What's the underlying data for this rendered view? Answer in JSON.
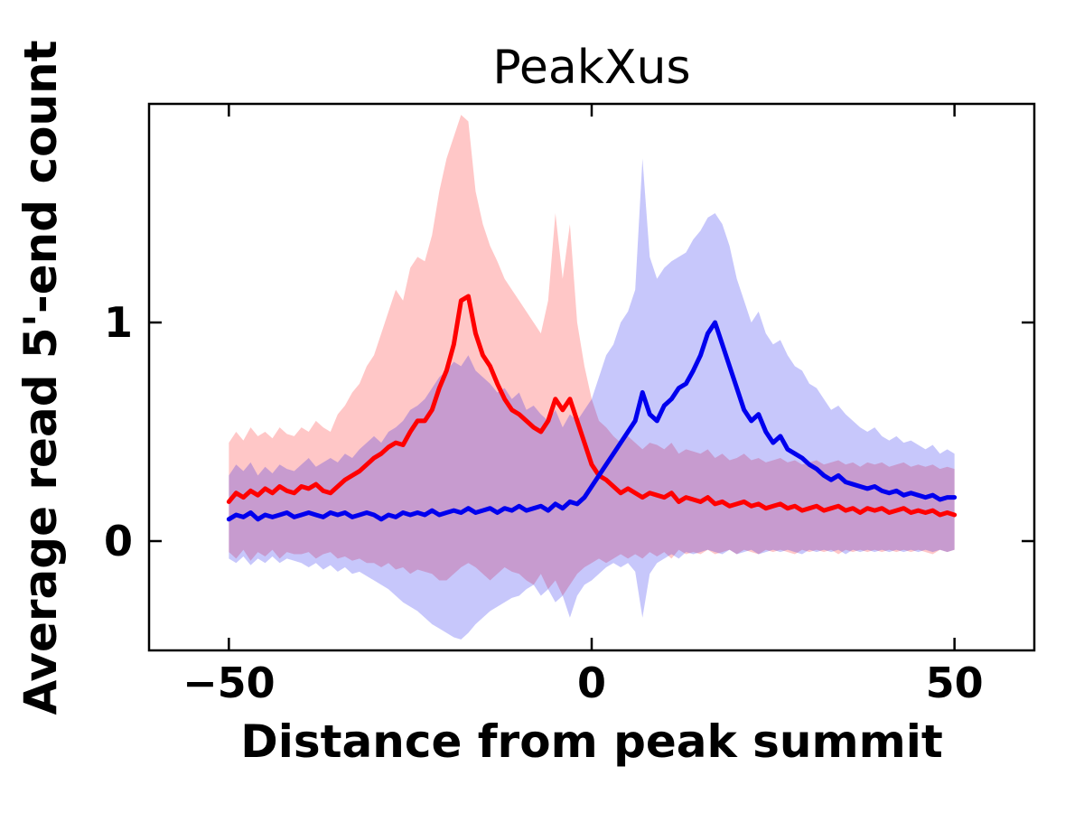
{
  "chart_data": {
    "type": "line",
    "title": "PeakXus",
    "xlabel": "Distance from peak summit",
    "ylabel": "Average read 5'-end count",
    "xlim": [
      -61,
      61
    ],
    "ylim": [
      -0.5,
      2.0
    ],
    "grid": false,
    "legend": false,
    "band_opacity": 0.22,
    "border_color": "#000000",
    "xticks": {
      "values": [
        -50,
        0,
        50
      ],
      "labels": [
        "−50",
        "0",
        "50"
      ]
    },
    "yticks": {
      "values": [
        0,
        1
      ],
      "labels": [
        "0",
        "1"
      ]
    },
    "x": [
      -50,
      -49,
      -48,
      -47,
      -46,
      -45,
      -44,
      -43,
      -42,
      -41,
      -40,
      -39,
      -38,
      -37,
      -36,
      -35,
      -34,
      -33,
      -32,
      -31,
      -30,
      -29,
      -28,
      -27,
      -26,
      -25,
      -24,
      -23,
      -22,
      -21,
      -20,
      -19,
      -18,
      -17,
      -16,
      -15,
      -14,
      -13,
      -12,
      -11,
      -10,
      -9,
      -8,
      -7,
      -6,
      -5,
      -4,
      -3,
      -2,
      -1,
      0,
      1,
      2,
      3,
      4,
      5,
      6,
      7,
      8,
      9,
      10,
      11,
      12,
      13,
      14,
      15,
      16,
      17,
      18,
      19,
      20,
      21,
      22,
      23,
      24,
      25,
      26,
      27,
      28,
      29,
      30,
      31,
      32,
      33,
      34,
      35,
      36,
      37,
      38,
      39,
      40,
      41,
      42,
      43,
      44,
      45,
      46,
      47,
      48,
      49,
      50
    ],
    "series": [
      {
        "name": "red_series",
        "color": "#ff0000",
        "values": [
          0.18,
          0.22,
          0.2,
          0.23,
          0.21,
          0.24,
          0.22,
          0.25,
          0.23,
          0.22,
          0.25,
          0.24,
          0.26,
          0.23,
          0.22,
          0.25,
          0.28,
          0.3,
          0.32,
          0.35,
          0.38,
          0.4,
          0.43,
          0.45,
          0.44,
          0.5,
          0.55,
          0.55,
          0.6,
          0.7,
          0.78,
          0.9,
          1.1,
          1.12,
          0.95,
          0.85,
          0.8,
          0.72,
          0.65,
          0.6,
          0.58,
          0.55,
          0.52,
          0.5,
          0.55,
          0.65,
          0.6,
          0.65,
          0.55,
          0.45,
          0.35,
          0.3,
          0.28,
          0.25,
          0.22,
          0.24,
          0.22,
          0.2,
          0.22,
          0.21,
          0.2,
          0.22,
          0.18,
          0.2,
          0.19,
          0.18,
          0.2,
          0.17,
          0.18,
          0.16,
          0.17,
          0.18,
          0.16,
          0.17,
          0.15,
          0.16,
          0.17,
          0.15,
          0.16,
          0.14,
          0.15,
          0.16,
          0.14,
          0.15,
          0.16,
          0.14,
          0.15,
          0.13,
          0.15,
          0.14,
          0.15,
          0.13,
          0.14,
          0.15,
          0.13,
          0.14,
          0.13,
          0.14,
          0.12,
          0.13,
          0.12
        ],
        "band_upper": [
          0.45,
          0.5,
          0.46,
          0.52,
          0.48,
          0.5,
          0.47,
          0.52,
          0.49,
          0.48,
          0.52,
          0.5,
          0.55,
          0.52,
          0.5,
          0.58,
          0.62,
          0.68,
          0.72,
          0.8,
          0.85,
          0.95,
          1.05,
          1.15,
          1.1,
          1.25,
          1.3,
          1.28,
          1.4,
          1.6,
          1.75,
          1.85,
          1.95,
          1.92,
          1.6,
          1.45,
          1.35,
          1.28,
          1.2,
          1.15,
          1.1,
          1.05,
          1.0,
          0.95,
          1.1,
          1.5,
          1.2,
          1.45,
          1.0,
          0.8,
          0.65,
          0.55,
          0.52,
          0.48,
          0.45,
          0.48,
          0.45,
          0.42,
          0.45,
          0.44,
          0.42,
          0.45,
          0.4,
          0.42,
          0.41,
          0.4,
          0.42,
          0.38,
          0.4,
          0.37,
          0.38,
          0.4,
          0.37,
          0.38,
          0.36,
          0.37,
          0.38,
          0.36,
          0.37,
          0.35,
          0.36,
          0.37,
          0.35,
          0.36,
          0.37,
          0.35,
          0.36,
          0.34,
          0.36,
          0.35,
          0.36,
          0.34,
          0.35,
          0.36,
          0.34,
          0.35,
          0.34,
          0.35,
          0.33,
          0.34,
          0.33
        ],
        "band_lower": [
          -0.05,
          -0.08,
          -0.04,
          -0.09,
          -0.05,
          -0.07,
          -0.04,
          -0.08,
          -0.05,
          -0.06,
          -0.06,
          -0.05,
          -0.08,
          -0.06,
          -0.05,
          -0.08,
          -0.07,
          -0.09,
          -0.08,
          -0.1,
          -0.1,
          -0.12,
          -0.1,
          -0.13,
          -0.12,
          -0.15,
          -0.13,
          -0.14,
          -0.15,
          -0.18,
          -0.18,
          -0.15,
          -0.12,
          -0.1,
          -0.12,
          -0.15,
          -0.18,
          -0.15,
          -0.12,
          -0.14,
          -0.15,
          -0.18,
          -0.2,
          -0.15,
          -0.22,
          -0.18,
          -0.25,
          -0.2,
          -0.15,
          -0.12,
          -0.1,
          -0.08,
          -0.1,
          -0.08,
          -0.06,
          -0.08,
          -0.06,
          -0.08,
          -0.05,
          -0.07,
          -0.05,
          -0.08,
          -0.04,
          -0.06,
          -0.05,
          -0.06,
          -0.04,
          -0.06,
          -0.05,
          -0.04,
          -0.06,
          -0.04,
          -0.05,
          -0.06,
          -0.04,
          -0.05,
          -0.04,
          -0.05,
          -0.06,
          -0.04,
          -0.05,
          -0.04,
          -0.05,
          -0.04,
          -0.06,
          -0.04,
          -0.05,
          -0.04,
          -0.05,
          -0.04,
          -0.05,
          -0.04,
          -0.05,
          -0.04,
          -0.05,
          -0.04,
          -0.05,
          -0.06,
          -0.04,
          -0.05,
          -0.04
        ]
      },
      {
        "name": "blue_series",
        "color": "#0000ee",
        "values": [
          0.1,
          0.12,
          0.11,
          0.13,
          0.1,
          0.12,
          0.11,
          0.12,
          0.13,
          0.11,
          0.12,
          0.13,
          0.12,
          0.11,
          0.13,
          0.12,
          0.13,
          0.11,
          0.12,
          0.13,
          0.12,
          0.1,
          0.12,
          0.11,
          0.13,
          0.12,
          0.13,
          0.12,
          0.14,
          0.12,
          0.13,
          0.14,
          0.13,
          0.15,
          0.13,
          0.14,
          0.15,
          0.13,
          0.15,
          0.14,
          0.16,
          0.14,
          0.15,
          0.16,
          0.14,
          0.17,
          0.15,
          0.18,
          0.17,
          0.2,
          0.25,
          0.3,
          0.35,
          0.4,
          0.45,
          0.5,
          0.55,
          0.68,
          0.58,
          0.55,
          0.62,
          0.65,
          0.7,
          0.72,
          0.78,
          0.85,
          0.95,
          1.0,
          0.9,
          0.8,
          0.7,
          0.6,
          0.55,
          0.58,
          0.5,
          0.45,
          0.48,
          0.42,
          0.4,
          0.38,
          0.35,
          0.33,
          0.3,
          0.28,
          0.3,
          0.27,
          0.26,
          0.25,
          0.24,
          0.25,
          0.23,
          0.22,
          0.23,
          0.21,
          0.22,
          0.21,
          0.2,
          0.21,
          0.19,
          0.2,
          0.2
        ],
        "band_upper": [
          0.3,
          0.35,
          0.32,
          0.36,
          0.3,
          0.34,
          0.31,
          0.35,
          0.33,
          0.32,
          0.35,
          0.38,
          0.34,
          0.36,
          0.38,
          0.36,
          0.4,
          0.38,
          0.42,
          0.45,
          0.48,
          0.45,
          0.5,
          0.52,
          0.55,
          0.6,
          0.62,
          0.65,
          0.7,
          0.75,
          0.78,
          0.82,
          0.8,
          0.85,
          0.78,
          0.75,
          0.72,
          0.68,
          0.7,
          0.65,
          0.68,
          0.6,
          0.62,
          0.58,
          0.55,
          0.6,
          0.52,
          0.58,
          0.55,
          0.6,
          0.65,
          0.75,
          0.85,
          0.9,
          1.0,
          1.05,
          1.15,
          1.75,
          1.3,
          1.2,
          1.25,
          1.28,
          1.3,
          1.32,
          1.38,
          1.42,
          1.48,
          1.5,
          1.45,
          1.35,
          1.2,
          1.1,
          1.0,
          1.05,
          0.95,
          0.9,
          0.92,
          0.85,
          0.8,
          0.78,
          0.72,
          0.7,
          0.65,
          0.6,
          0.62,
          0.58,
          0.55,
          0.52,
          0.5,
          0.52,
          0.48,
          0.46,
          0.48,
          0.45,
          0.46,
          0.44,
          0.42,
          0.44,
          0.4,
          0.42,
          0.4
        ],
        "band_lower": [
          -0.08,
          -0.1,
          -0.07,
          -0.11,
          -0.08,
          -0.1,
          -0.07,
          -0.1,
          -0.08,
          -0.09,
          -0.1,
          -0.12,
          -0.1,
          -0.13,
          -0.11,
          -0.14,
          -0.12,
          -0.15,
          -0.14,
          -0.16,
          -0.18,
          -0.2,
          -0.22,
          -0.25,
          -0.28,
          -0.3,
          -0.32,
          -0.35,
          -0.38,
          -0.4,
          -0.42,
          -0.44,
          -0.45,
          -0.42,
          -0.38,
          -0.35,
          -0.32,
          -0.3,
          -0.28,
          -0.26,
          -0.25,
          -0.22,
          -0.2,
          -0.25,
          -0.22,
          -0.28,
          -0.25,
          -0.35,
          -0.25,
          -0.2,
          -0.18,
          -0.15,
          -0.12,
          -0.1,
          -0.12,
          -0.1,
          -0.14,
          -0.35,
          -0.15,
          -0.1,
          -0.08,
          -0.06,
          -0.08,
          -0.05,
          -0.06,
          -0.05,
          -0.04,
          -0.05,
          -0.06,
          -0.04,
          -0.06,
          -0.05,
          -0.04,
          -0.06,
          -0.05,
          -0.04,
          -0.05,
          -0.04,
          -0.05,
          -0.06,
          -0.04,
          -0.05,
          -0.04,
          -0.05,
          -0.04,
          -0.06,
          -0.04,
          -0.05,
          -0.04,
          -0.05,
          -0.04,
          -0.05,
          -0.04,
          -0.05,
          -0.04,
          -0.05,
          -0.04,
          -0.05,
          -0.04,
          -0.05,
          -0.04
        ]
      }
    ]
  }
}
